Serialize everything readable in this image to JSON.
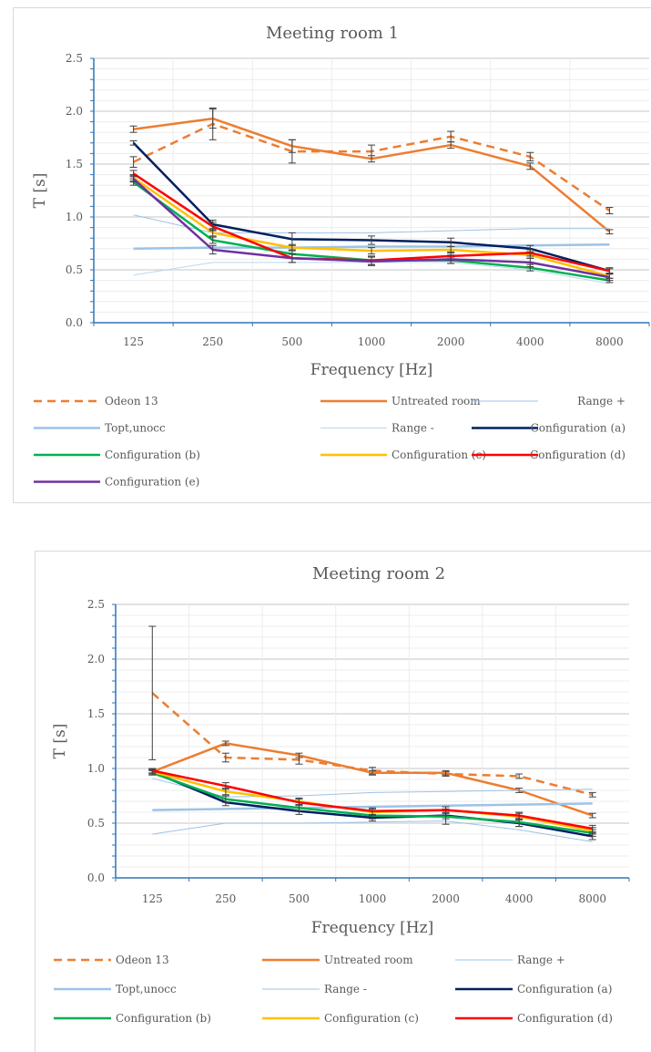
{
  "chart_data": [
    {
      "type": "line",
      "title": "Meeting room 1",
      "xlabel": "Frequency [Hz]",
      "ylabel": "T [s]",
      "categories": [
        "125",
        "250",
        "500",
        "1000",
        "2000",
        "4000",
        "8000"
      ],
      "ylim": [
        0,
        2.5
      ],
      "yticks": [
        "0.0",
        "0.5",
        "1.0",
        "1.5",
        "2.0",
        "2.5"
      ],
      "grid": true,
      "legend_position": "bottom",
      "series": [
        {
          "name": "Odeon 13",
          "color": "#ED7D31",
          "style": "dashed",
          "values": [
            1.52,
            1.88,
            1.62,
            1.62,
            1.76,
            1.57,
            1.06
          ],
          "error": [
            0.05,
            0.15,
            0.11,
            0.06,
            0.05,
            0.04,
            0.03
          ]
        },
        {
          "name": "Untreated room",
          "color": "#ED7D31",
          "style": "solid",
          "values": [
            1.83,
            1.93,
            1.67,
            1.55,
            1.68,
            1.48,
            0.86
          ],
          "error": [
            0.03,
            0.09,
            0.06,
            0.03,
            0.03,
            0.03,
            0.02
          ]
        },
        {
          "name": "Range +",
          "color": "#9DC3E6",
          "style": "thin",
          "values": [
            1.02,
            0.85,
            0.85,
            0.85,
            0.87,
            0.89,
            0.89
          ]
        },
        {
          "name": "Topt,unocc",
          "color": "#9DC3E6",
          "style": "thick",
          "values": [
            0.7,
            0.71,
            0.71,
            0.72,
            0.72,
            0.73,
            0.74
          ]
        },
        {
          "name": "Range -",
          "color": "#BDD7EE",
          "style": "thin",
          "values": [
            0.45,
            0.57,
            0.57,
            0.57,
            0.57,
            0.5,
            0.37
          ]
        },
        {
          "name": "Configuration (a)",
          "color": "#002060",
          "style": "solid",
          "values": [
            1.7,
            0.93,
            0.79,
            0.78,
            0.76,
            0.7,
            0.49
          ],
          "error": [
            0.02,
            0.04,
            0.06,
            0.04,
            0.04,
            0.03,
            0.03
          ]
        },
        {
          "name": "Configuration (b)",
          "color": "#00B050",
          "style": "solid",
          "values": [
            1.33,
            0.78,
            0.65,
            0.59,
            0.59,
            0.52,
            0.4
          ],
          "error": [
            0.03,
            0.03,
            0.04,
            0.04,
            0.03,
            0.03,
            0.02
          ]
        },
        {
          "name": "Configuration (c)",
          "color": "#FFC000",
          "style": "solid",
          "values": [
            1.37,
            0.85,
            0.71,
            0.68,
            0.69,
            0.64,
            0.44
          ],
          "error": [
            0.03,
            0.03,
            0.03,
            0.03,
            0.03,
            0.03,
            0.02
          ]
        },
        {
          "name": "Configuration (d)",
          "color": "#FF0000",
          "style": "solid",
          "values": [
            1.41,
            0.91,
            0.61,
            0.59,
            0.63,
            0.66,
            0.49
          ],
          "error": [
            0.03,
            0.04,
            0.04,
            0.04,
            0.04,
            0.03,
            0.02
          ]
        },
        {
          "name": "Configuration (e)",
          "color": "#7030A0",
          "style": "solid",
          "values": [
            1.36,
            0.69,
            0.61,
            0.58,
            0.6,
            0.57,
            0.43
          ],
          "error": [
            0.03,
            0.04,
            0.04,
            0.04,
            0.04,
            0.04,
            0.03
          ]
        }
      ]
    },
    {
      "type": "line",
      "title": "Meeting room 2",
      "xlabel": "Frequency [Hz]",
      "ylabel": "T [s]",
      "categories": [
        "125",
        "250",
        "500",
        "1000",
        "2000",
        "4000",
        "8000"
      ],
      "ylim": [
        0,
        2.5
      ],
      "yticks": [
        "0.0",
        "0.5",
        "1.0",
        "1.5",
        "2.0",
        "2.5"
      ],
      "grid": true,
      "legend_position": "bottom",
      "series": [
        {
          "name": "Odeon 13",
          "color": "#ED7D31",
          "style": "dashed",
          "values": [
            1.69,
            1.1,
            1.08,
            0.98,
            0.95,
            0.93,
            0.76
          ],
          "error": [
            0.61,
            0.04,
            0.04,
            0.03,
            0.02,
            0.02,
            0.02
          ]
        },
        {
          "name": "Untreated room",
          "color": "#ED7D31",
          "style": "solid",
          "values": [
            0.97,
            1.23,
            1.12,
            0.96,
            0.96,
            0.8,
            0.57
          ],
          "error": [
            0.02,
            0.02,
            0.02,
            0.02,
            0.02,
            0.02,
            0.02
          ]
        },
        {
          "name": "Range +",
          "color": "#9DC3E6",
          "style": "thin",
          "values": [
            0.91,
            0.74,
            0.75,
            0.78,
            0.79,
            0.8,
            0.81
          ]
        },
        {
          "name": "Topt,unocc",
          "color": "#9DC3E6",
          "style": "thick",
          "values": [
            0.62,
            0.63,
            0.64,
            0.65,
            0.66,
            0.67,
            0.68
          ]
        },
        {
          "name": "Range -",
          "color": "#9DC3E6",
          "style": "thin",
          "values": [
            0.4,
            0.5,
            0.5,
            0.51,
            0.52,
            0.44,
            0.33
          ]
        },
        {
          "name": "Configuration (a)",
          "color": "#002060",
          "style": "solid",
          "values": [
            0.97,
            0.69,
            0.61,
            0.55,
            0.57,
            0.5,
            0.38
          ],
          "error": [
            0.02,
            0.03,
            0.03,
            0.03,
            0.03,
            0.03,
            0.03
          ]
        },
        {
          "name": "Configuration (b)",
          "color": "#00B050",
          "style": "solid",
          "values": [
            0.96,
            0.72,
            0.64,
            0.57,
            0.56,
            0.51,
            0.41
          ],
          "error": [
            0.02,
            0.03,
            0.03,
            0.03,
            0.07,
            0.04,
            0.03
          ]
        },
        {
          "name": "Configuration (c)",
          "color": "#FFC000",
          "style": "solid",
          "values": [
            0.97,
            0.79,
            0.7,
            0.6,
            0.62,
            0.56,
            0.43
          ],
          "error": [
            0.02,
            0.03,
            0.03,
            0.03,
            0.03,
            0.03,
            0.03
          ]
        },
        {
          "name": "Configuration (d)",
          "color": "#FF0000",
          "style": "solid",
          "values": [
            0.98,
            0.84,
            0.69,
            0.61,
            0.62,
            0.57,
            0.45
          ],
          "error": [
            0.02,
            0.03,
            0.03,
            0.03,
            0.03,
            0.03,
            0.03
          ]
        }
      ]
    }
  ]
}
